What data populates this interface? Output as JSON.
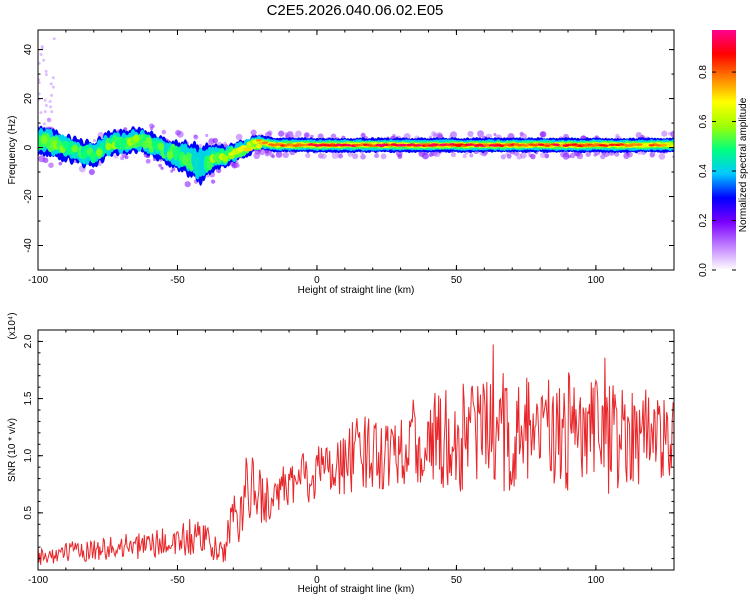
{
  "title": "C2E5.2026.040.06.02.E05",
  "chart_data": [
    {
      "type": "heatmap",
      "xlabel": "Height of straight line (km)",
      "ylabel": "Frequency (Hz)",
      "xlim": [
        -100,
        128
      ],
      "ylim": [
        -50,
        48
      ],
      "x_ticks": [
        -100,
        -50,
        0,
        50,
        100
      ],
      "y_ticks": [
        -40,
        -20,
        0,
        20,
        40
      ],
      "colorbar": {
        "label": "Normalized spectral amplitude",
        "range": [
          0,
          0.97
        ],
        "ticks": [
          "0.0",
          "0.2",
          "0.4",
          "0.6",
          "0.8"
        ],
        "colormap": [
          "#ffffff",
          "#c080ff",
          "#7b00ff",
          "#0000ff",
          "#00c8ff",
          "#00ff80",
          "#a0ff00",
          "#ffff00",
          "#ff8000",
          "#ff0000",
          "#ff0090"
        ]
      },
      "ridge": {
        "x": [
          -100,
          -95,
          -90,
          -85,
          -80,
          -75,
          -70,
          -65,
          -60,
          -55,
          -50,
          -45,
          -42,
          -40,
          -38,
          -35,
          -32,
          -30,
          -25,
          -20,
          -15,
          -10,
          -5,
          0,
          10,
          20,
          30,
          40,
          50,
          60,
          70,
          80,
          90,
          100,
          110,
          120,
          128
        ],
        "frequency_hz": [
          3,
          2,
          0,
          -2,
          -3,
          1,
          2,
          3,
          2,
          -1,
          -3,
          -5,
          -7,
          -6,
          -5,
          -4,
          -3,
          -2,
          0,
          2,
          1,
          1,
          1,
          1,
          1,
          1,
          1,
          1,
          1,
          1,
          1,
          1,
          1,
          1,
          1,
          1,
          1
        ],
        "amplitude": [
          0.55,
          0.55,
          0.5,
          0.5,
          0.5,
          0.55,
          0.55,
          0.55,
          0.55,
          0.5,
          0.5,
          0.5,
          0.45,
          0.5,
          0.55,
          0.55,
          0.6,
          0.6,
          0.65,
          0.7,
          0.75,
          0.8,
          0.85,
          0.9,
          0.92,
          0.92,
          0.92,
          0.9,
          0.92,
          0.88,
          0.85,
          0.85,
          0.85,
          0.8,
          0.8,
          0.75,
          0.7
        ],
        "spread_hz": [
          6,
          6,
          5,
          5,
          5,
          5,
          5,
          5,
          5,
          5,
          6,
          7,
          8,
          7,
          6,
          5,
          4,
          4,
          3.5,
          3,
          3,
          3,
          3,
          3,
          3,
          3,
          3,
          3,
          3,
          3,
          3,
          3,
          3,
          3,
          3,
          3,
          3
        ]
      }
    },
    {
      "type": "line",
      "xlabel": "Height of straight line (km)",
      "ylabel": "SNR (10 * v/v)",
      "y_scale_label": "(x10⁴)",
      "xlim": [
        -100,
        128
      ],
      "ylim": [
        0,
        2.1
      ],
      "x_ticks": [
        -100,
        -50,
        0,
        50,
        100
      ],
      "y_ticks": [
        "0.5",
        "1.0",
        "1.5",
        "2.0"
      ],
      "y_tick_values": [
        0.5,
        1.0,
        1.5,
        2.0
      ],
      "color": "#e8262a",
      "series": [
        {
          "x": [
            -100,
            -90,
            -80,
            -70,
            -60,
            -50,
            -45,
            -40,
            -35,
            -32,
            -30,
            -28,
            -25,
            -22,
            -20,
            -15,
            -10,
            -5,
            0,
            5,
            10,
            15,
            20,
            25,
            30,
            35,
            40,
            45,
            50,
            55,
            60,
            65,
            70,
            75,
            80,
            85,
            90,
            95,
            100,
            105,
            110,
            115,
            120,
            125,
            128
          ],
          "values": [
            0.12,
            0.15,
            0.18,
            0.2,
            0.22,
            0.25,
            0.28,
            0.25,
            0.15,
            0.25,
            0.4,
            0.55,
            0.65,
            0.7,
            0.65,
            0.6,
            0.75,
            0.8,
            0.85,
            0.9,
            0.95,
            1.0,
            1.05,
            1.05,
            1.1,
            1.1,
            1.15,
            1.1,
            1.15,
            1.2,
            1.2,
            1.15,
            1.15,
            1.2,
            1.2,
            1.15,
            1.2,
            1.15,
            1.2,
            1.15,
            1.2,
            1.2,
            1.2,
            1.15,
            1.2
          ],
          "noise": [
            0.08,
            0.09,
            0.1,
            0.11,
            0.12,
            0.15,
            0.18,
            0.15,
            0.1,
            0.2,
            0.3,
            0.35,
            0.35,
            0.3,
            0.25,
            0.2,
            0.25,
            0.25,
            0.25,
            0.3,
            0.3,
            0.35,
            0.35,
            0.35,
            0.35,
            0.4,
            0.4,
            0.45,
            0.5,
            0.55,
            0.5,
            0.5,
            0.5,
            0.5,
            0.5,
            0.5,
            0.55,
            0.5,
            0.5,
            0.5,
            0.45,
            0.45,
            0.45,
            0.4,
            0.35
          ]
        }
      ]
    }
  ]
}
